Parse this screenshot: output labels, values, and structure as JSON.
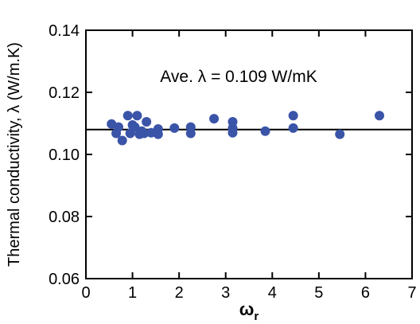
{
  "chart_data": {
    "type": "scatter",
    "x_label": "ω",
    "x_label_sub": "r",
    "y_label": "Thermal conductivity, λ (W/m.K)",
    "annotation": "Ave. λ = 0.109 W/mK",
    "reference_line": 0.108,
    "color": "#3a54a8",
    "x": [
      0.55,
      0.65,
      0.7,
      0.78,
      0.9,
      0.95,
      1.0,
      1.05,
      1.1,
      1.15,
      1.2,
      1.25,
      1.3,
      1.4,
      1.55,
      1.55,
      1.9,
      2.25,
      2.25,
      2.75,
      3.15,
      3.15,
      3.15,
      3.85,
      4.45,
      4.45,
      5.45,
      6.3
    ],
    "values": [
      0.1098,
      0.1068,
      0.1088,
      0.1045,
      0.1125,
      0.1068,
      0.1095,
      0.1088,
      0.1125,
      0.1065,
      0.1075,
      0.1068,
      0.1105,
      0.107,
      0.1082,
      0.1065,
      0.1085,
      0.1088,
      0.1068,
      0.1115,
      0.1105,
      0.1085,
      0.107,
      0.1075,
      0.1125,
      0.1085,
      0.1065,
      0.1125
    ],
    "xlim": [
      0,
      7
    ],
    "xticks": [
      0,
      1,
      2,
      3,
      4,
      5,
      6,
      7
    ],
    "ylim": [
      0.06,
      0.14
    ],
    "yticks": [
      0.06,
      0.08,
      {
        "value": 0.1,
        "label": "0.10"
      },
      0.12,
      0.14
    ]
  }
}
